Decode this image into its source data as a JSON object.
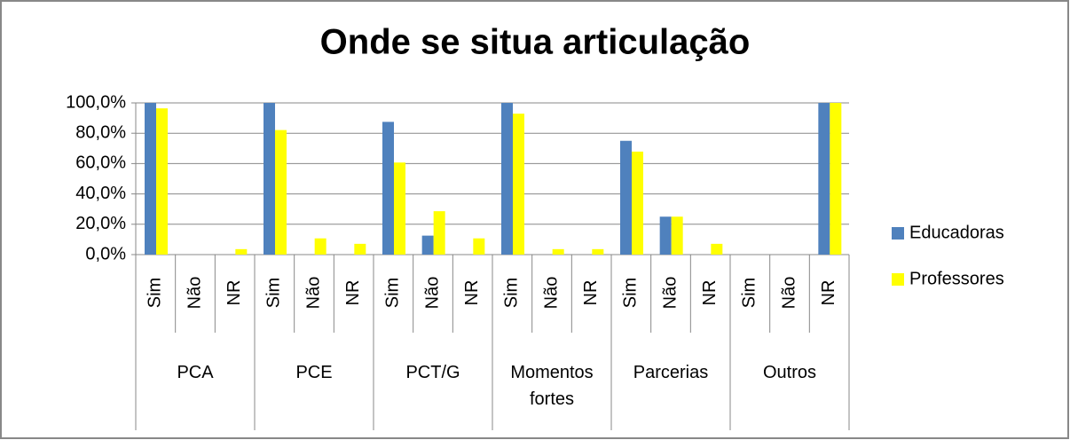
{
  "chart_data": {
    "type": "bar",
    "title": "Onde se situa articulação",
    "categories": [
      "Sim",
      "Não",
      "NR",
      "Sim",
      "Não",
      "NR",
      "Sim",
      "Não",
      "NR",
      "Sim",
      "Não",
      "NR",
      "Sim",
      "Não",
      "NR",
      "Sim",
      "Não",
      "NR"
    ],
    "groups": [
      "PCA",
      "PCE",
      "PCT/G",
      "Momentos fortes",
      "Parcerias",
      "Outros"
    ],
    "series": [
      {
        "name": "Educadoras",
        "color": "#4f81bd",
        "values": [
          100,
          0,
          0,
          100,
          0,
          0,
          87.5,
          12.5,
          0,
          100,
          0,
          0,
          75,
          25,
          0,
          0,
          0,
          100
        ]
      },
      {
        "name": "Professores",
        "color": "#ffff00",
        "values": [
          96.4,
          0,
          3.6,
          82.1,
          10.7,
          7.1,
          60.7,
          28.6,
          10.7,
          92.9,
          3.6,
          3.6,
          67.9,
          25,
          7.1,
          0,
          0,
          100
        ]
      }
    ],
    "ylim": [
      0,
      100
    ],
    "yticks": [
      {
        "value": 0,
        "label": "0,0%"
      },
      {
        "value": 20,
        "label": "20,0%"
      },
      {
        "value": 40,
        "label": "40,0%"
      },
      {
        "value": 60,
        "label": "60,0%"
      },
      {
        "value": 80,
        "label": "80,0%"
      },
      {
        "value": 100,
        "label": "100,0%"
      }
    ],
    "grid": true,
    "legend": "right"
  }
}
